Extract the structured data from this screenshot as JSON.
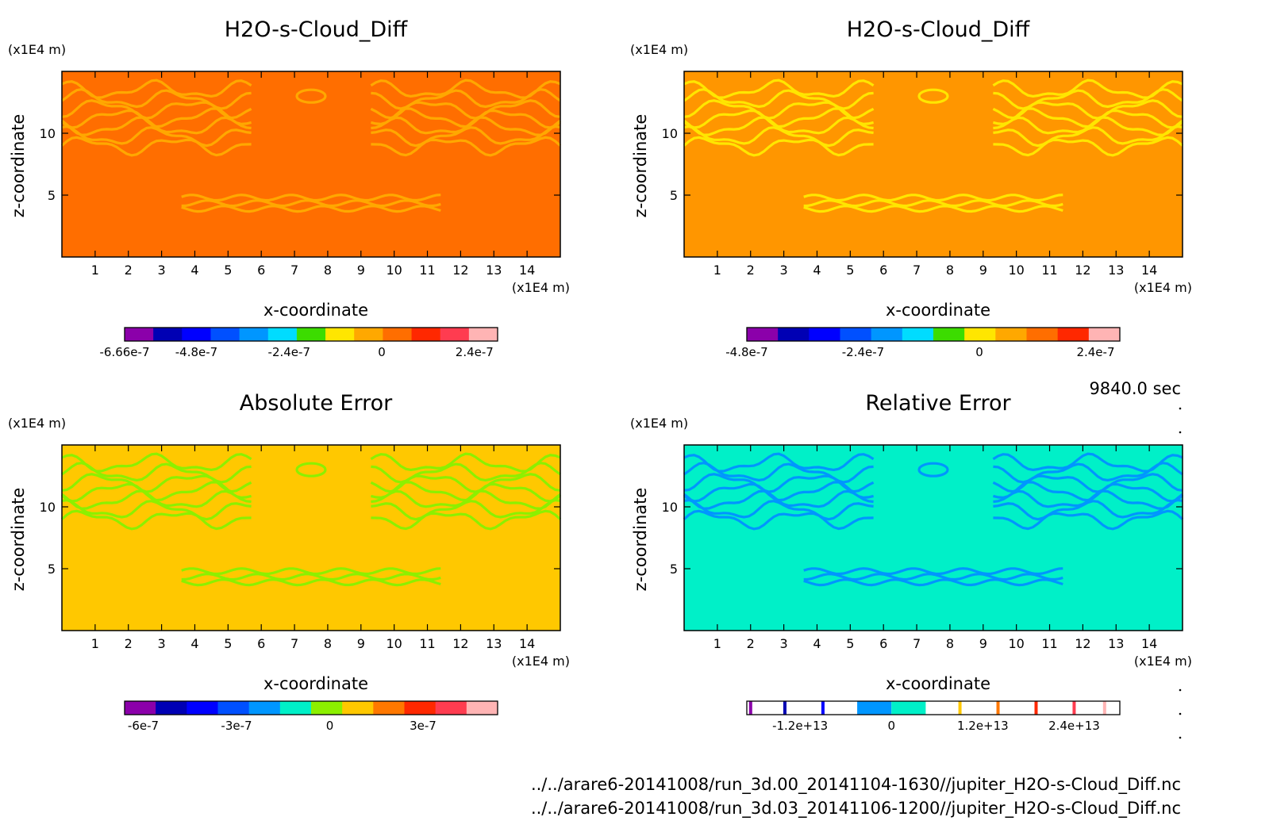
{
  "chart_data": [
    {
      "type": "heatmap",
      "title": "H2O-s-Cloud_Diff",
      "xlabel": "x-coordinate",
      "ylabel": "z-coordinate",
      "x_unit": "(x1E4 m)",
      "y_unit": "(x1E4 m)",
      "x_ticks": [
        "1",
        "2",
        "3",
        "4",
        "5",
        "6",
        "7",
        "8",
        "9",
        "10",
        "11",
        "12",
        "13",
        "14"
      ],
      "y_ticks": [
        "5",
        "10"
      ],
      "xlim": [
        0,
        15
      ],
      "ylim": [
        0,
        15
      ],
      "background_color": "#ff6e00",
      "pattern_color": "#ffa800",
      "colorbar": {
        "colors": [
          "#8b00aa",
          "#0000b4",
          "#0000ff",
          "#0050ff",
          "#0096ff",
          "#00dcff",
          "#3cdc00",
          "#ffe600",
          "#ffa800",
          "#ff6e00",
          "#ff2800",
          "#ff3c50",
          "#ffb4b4"
        ],
        "tick_labels": [
          "-6.66e-7",
          "-4.8e-7",
          "-2.4e-7",
          "0",
          "2.4e-7"
        ],
        "tick_values": [
          -6.66e-07,
          -4.8e-07,
          -2.4e-07,
          0,
          2.4e-07
        ],
        "range": [
          -6.66e-07,
          3e-07
        ]
      }
    },
    {
      "type": "heatmap",
      "title": "H2O-s-Cloud_Diff",
      "xlabel": "x-coordinate",
      "ylabel": "z-coordinate",
      "x_unit": "(x1E4 m)",
      "y_unit": "(x1E4 m)",
      "x_ticks": [
        "1",
        "2",
        "3",
        "4",
        "5",
        "6",
        "7",
        "8",
        "9",
        "10",
        "11",
        "12",
        "13",
        "14"
      ],
      "y_ticks": [
        "5",
        "10"
      ],
      "xlim": [
        0,
        15
      ],
      "ylim": [
        0,
        15
      ],
      "background_color": "#ff9600",
      "pattern_color": "#ffe600",
      "colorbar": {
        "colors": [
          "#8b00aa",
          "#0000b4",
          "#0000ff",
          "#0050ff",
          "#0096ff",
          "#00dcff",
          "#3cdc00",
          "#ffe600",
          "#ffa800",
          "#ff6e00",
          "#ff2800",
          "#ffb4b4"
        ],
        "tick_labels": [
          "-4.8e-7",
          "-2.4e-7",
          "0",
          "2.4e-7"
        ],
        "tick_values": [
          -4.8e-07,
          -2.4e-07,
          0,
          2.4e-07
        ],
        "range": [
          -4.8e-07,
          2.9e-07
        ]
      }
    },
    {
      "type": "heatmap",
      "title": "Absolute Error",
      "xlabel": "x-coordinate",
      "ylabel": "z-coordinate",
      "x_unit": "(x1E4 m)",
      "y_unit": "(x1E4 m)",
      "x_ticks": [
        "1",
        "2",
        "3",
        "4",
        "5",
        "6",
        "7",
        "8",
        "9",
        "10",
        "11",
        "12",
        "13",
        "14"
      ],
      "y_ticks": [
        "5",
        "10"
      ],
      "xlim": [
        0,
        15
      ],
      "ylim": [
        0,
        15
      ],
      "background_color": "#ffc800",
      "pattern_color": "#8cf000",
      "colorbar": {
        "colors": [
          "#8b00aa",
          "#0000b4",
          "#0000ff",
          "#0050ff",
          "#0096ff",
          "#00f0c8",
          "#8cf000",
          "#ffc800",
          "#ff7800",
          "#ff2800",
          "#ff3c50",
          "#ffb4b4"
        ],
        "tick_labels": [
          "-6e-7",
          "-3e-7",
          "0",
          "3e-7"
        ],
        "tick_values": [
          -6e-07,
          -3e-07,
          0,
          3e-07
        ],
        "range": [
          -6.6e-07,
          5.4e-07
        ]
      }
    },
    {
      "type": "heatmap",
      "title": "Relative Error",
      "xlabel": "x-coordinate",
      "ylabel": "z-coordinate",
      "x_unit": "(x1E4 m)",
      "y_unit": "(x1E4 m)",
      "x_ticks": [
        "1",
        "2",
        "3",
        "4",
        "5",
        "6",
        "7",
        "8",
        "9",
        "10",
        "11",
        "12",
        "13",
        "14"
      ],
      "y_ticks": [
        "5",
        "10"
      ],
      "xlim": [
        0,
        15
      ],
      "ylim": [
        0,
        15
      ],
      "background_color": "#00f0c8",
      "pattern_color": "#0096ff",
      "colorbar": {
        "colors": [
          "#ffffff",
          "#0096ff",
          "#00f0c8",
          "#ffffff"
        ],
        "tick_labels": [
          "-1.2e+13",
          "0",
          "1.2e+13",
          "2.4e+13"
        ],
        "tick_values": [
          -12000000000000.0,
          0,
          12000000000000.0,
          24000000000000.0
        ],
        "range": [
          -19000000000000.0,
          30000000000000.0
        ],
        "lines": [
          {
            "value": -18500000000000.0,
            "color": "#8b00aa"
          },
          {
            "value": -14000000000000.0,
            "color": "#0000b4"
          },
          {
            "value": -9000000000000.0,
            "color": "#0000ff"
          },
          {
            "value": 9000000000000.0,
            "color": "#ffc800"
          },
          {
            "value": 14000000000000.0,
            "color": "#ff7800"
          },
          {
            "value": 19000000000000.0,
            "color": "#ff2800"
          },
          {
            "value": 24000000000000.0,
            "color": "#ff3c50"
          },
          {
            "value": 28000000000000.0,
            "color": "#ffb4b4"
          }
        ]
      }
    }
  ],
  "info": {
    "time": "9840.0 sec",
    "file1": "../../arare6-20141008/run_3d.00_20141104-1630//jupiter_H2O-s-Cloud_Diff.nc",
    "file2": "../../arare6-20141008/run_3d.03_20141106-1200//jupiter_H2O-s-Cloud_Diff.nc"
  }
}
